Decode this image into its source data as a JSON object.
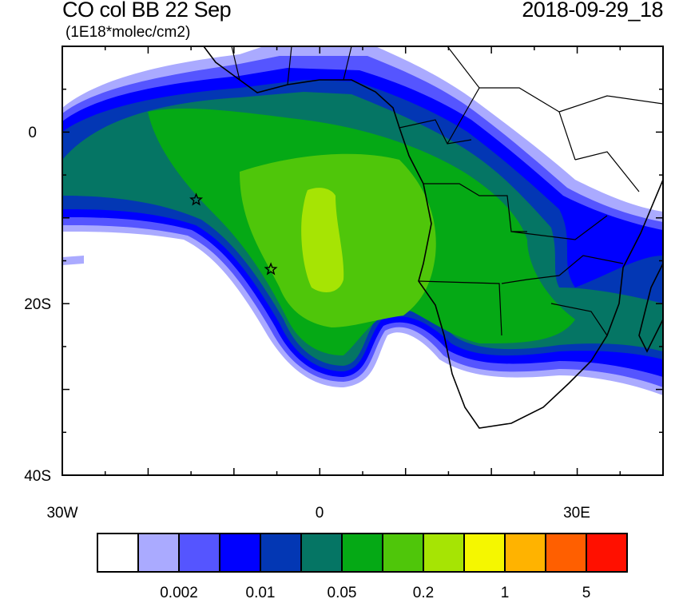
{
  "header": {
    "title": "CO col BB 22 Sep",
    "units": "(1E18*molec/cm2)",
    "timestamp": "2018-09-29_18"
  },
  "map": {
    "projection": "cylindrical equidistant",
    "lon_range": [
      -30,
      40
    ],
    "lat_range": [
      -40,
      10
    ],
    "lat_tick_labels": [
      "0",
      "20S",
      "40S"
    ],
    "lon_tick_labels": [
      "30W",
      "0",
      "30E"
    ],
    "markers": [
      {
        "type": "star",
        "lon": -14.4,
        "lat": -7.9
      },
      {
        "type": "star",
        "lon": -5.7,
        "lat": -16.0
      }
    ]
  },
  "colorbar": {
    "colors": [
      "#FFFFFF",
      "#AAAAFF",
      "#5555FF",
      "#0000FF",
      "#0337B4",
      "#057564",
      "#05A915",
      "#4FC60A",
      "#A6E404",
      "#F5F700",
      "#FFB300",
      "#FF5F00",
      "#FF1000"
    ],
    "labels": [
      "0.002",
      "0.01",
      "0.05",
      "0.2",
      "1",
      "5"
    ]
  }
}
